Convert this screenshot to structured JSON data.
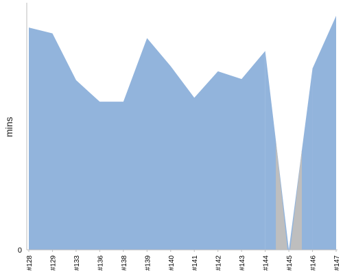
{
  "chart_data": {
    "type": "area",
    "ylabel": "mins",
    "xlabel": "",
    "title": "",
    "categories": [
      "#128",
      "#129",
      "#133",
      "#136",
      "#138",
      "#139",
      "#140",
      "#141",
      "#142",
      "#143",
      "#144",
      "#145",
      "#146",
      "#147"
    ],
    "values": [
      95,
      92.5,
      72.5,
      63.3,
      63.3,
      90.5,
      78.5,
      65,
      76.3,
      73,
      85,
      0,
      77.5,
      100
    ],
    "ylim": [
      0,
      105
    ],
    "y_ticks": [
      {
        "label": "0",
        "value": 0
      }
    ],
    "grid": false,
    "colors": {
      "area": "#92b4dc",
      "failed": "#bebebe",
      "axis": "#bdbdbd"
    }
  }
}
